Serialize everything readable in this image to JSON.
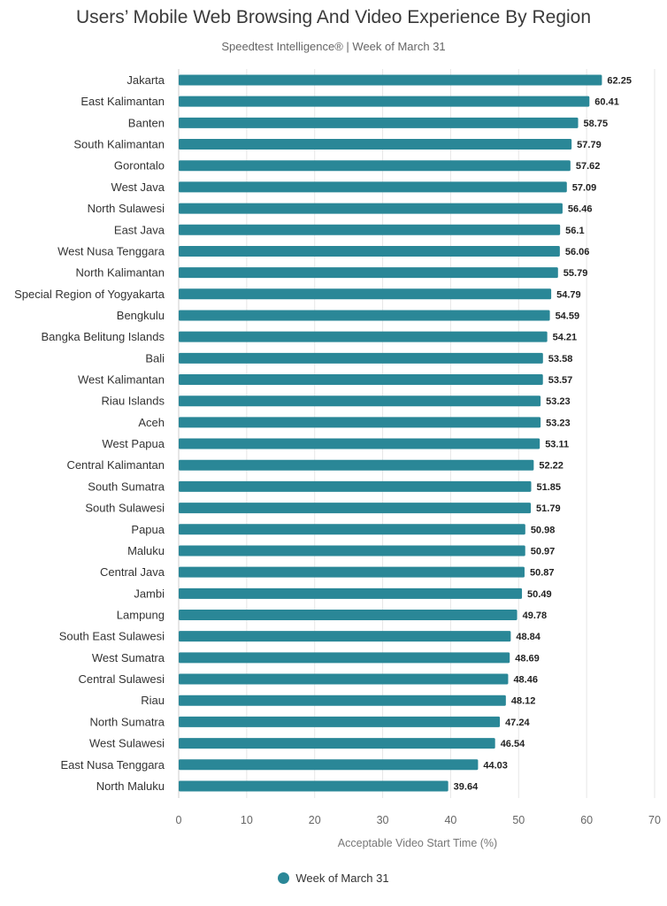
{
  "chart_data": {
    "type": "bar",
    "orientation": "horizontal",
    "title": "Users’ Mobile Web Browsing And Video Experience By Region",
    "subtitle": "Speedtest Intelligence® | Week of March 31",
    "xlabel": "Acceptable Video Start Time (%)",
    "ylabel": "",
    "xlim": [
      0,
      70
    ],
    "xticks": [
      0,
      10,
      20,
      30,
      40,
      50,
      60,
      70
    ],
    "grid": true,
    "legend_position": "bottom",
    "bar_color": "#2a8797",
    "categories": [
      "Jakarta",
      "East Kalimantan",
      "Banten",
      "South Kalimantan",
      "Gorontalo",
      "West Java",
      "North Sulawesi",
      "East Java",
      "West Nusa Tenggara",
      "North Kalimantan",
      "Special Region of Yogyakarta",
      "Bengkulu",
      "Bangka Belitung Islands",
      "Bali",
      "West Kalimantan",
      "Riau Islands",
      "Aceh",
      "West Papua",
      "Central Kalimantan",
      "South Sumatra",
      "South Sulawesi",
      "Papua",
      "Maluku",
      "Central Java",
      "Jambi",
      "Lampung",
      "South East Sulawesi",
      "West Sumatra",
      "Central Sulawesi",
      "Riau",
      "North Sumatra",
      "West Sulawesi",
      "East Nusa Tenggara",
      "North Maluku"
    ],
    "series": [
      {
        "name": "Week of March 31",
        "values": [
          62.25,
          60.41,
          58.75,
          57.79,
          57.62,
          57.09,
          56.46,
          56.1,
          56.06,
          55.79,
          54.79,
          54.59,
          54.21,
          53.58,
          53.57,
          53.23,
          53.23,
          53.11,
          52.22,
          51.85,
          51.79,
          50.98,
          50.97,
          50.87,
          50.49,
          49.78,
          48.84,
          48.69,
          48.46,
          48.12,
          47.24,
          46.54,
          44.03,
          39.64
        ],
        "labels": [
          "62.25",
          "60.41",
          "58.75",
          "57.79",
          "57.62",
          "57.09",
          "56.46",
          "56.1",
          "56.06",
          "55.79",
          "54.79",
          "54.59",
          "54.21",
          "53.58",
          "53.57",
          "53.23",
          "53.23",
          "53.11",
          "52.22",
          "51.85",
          "51.79",
          "50.98",
          "50.97",
          "50.87",
          "50.49",
          "49.78",
          "48.84",
          "48.69",
          "48.46",
          "48.12",
          "47.24",
          "46.54",
          "44.03",
          "39.64"
        ]
      }
    ]
  }
}
